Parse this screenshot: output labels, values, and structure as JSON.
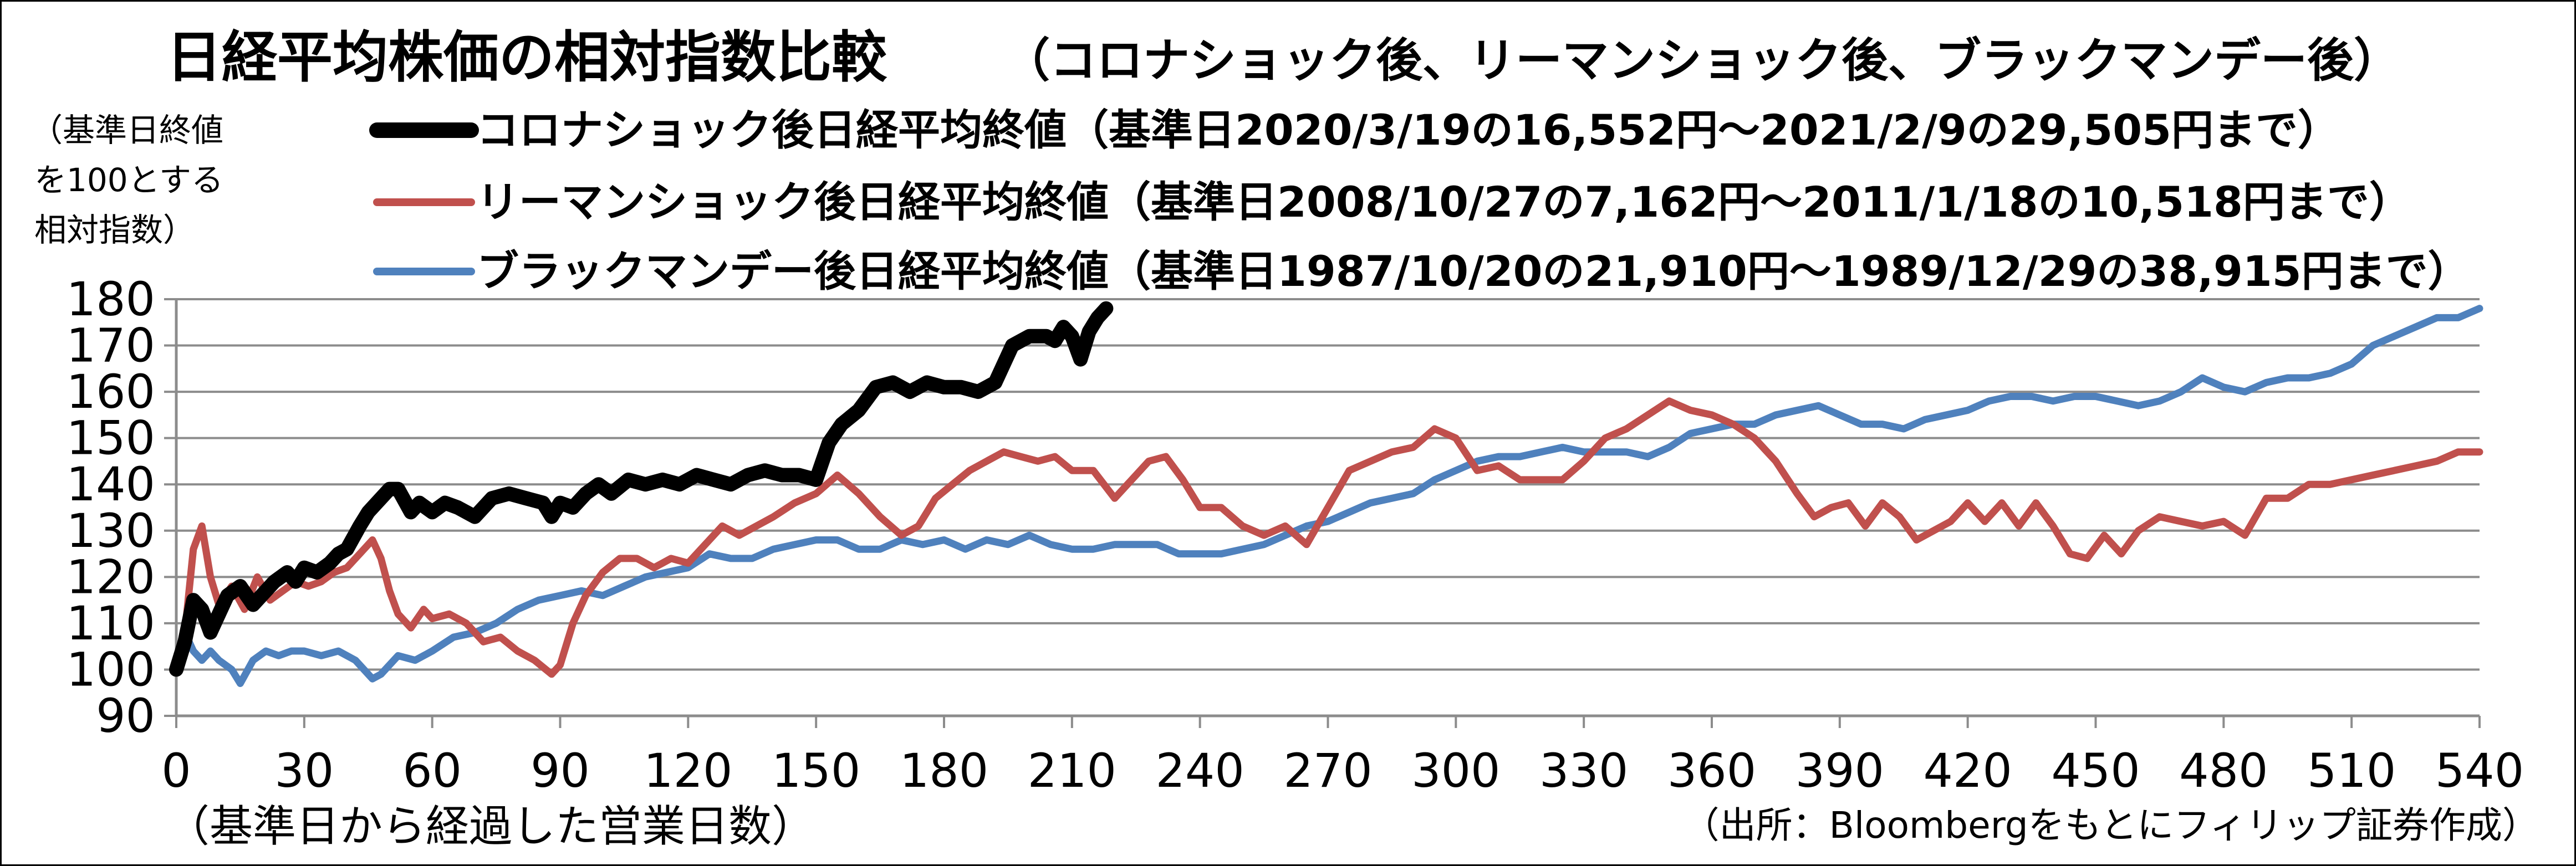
{
  "chart_data": {
    "type": "line",
    "title": "日経平均株価の相対指数比較",
    "subtitle": "（コロナショック後、リーマンショック後、ブラックマンデー後）",
    "ylabel_lines": [
      "（基準日終値",
      "を100とする",
      "相対指数）"
    ],
    "xlabel": "（基準日から経過した営業日数）",
    "source": "（出所：Bloombergをもとにフィリップ証券作成）",
    "xlim": [
      0,
      540
    ],
    "ylim": [
      90,
      180
    ],
    "xticks": [
      0,
      30,
      60,
      90,
      120,
      150,
      180,
      210,
      240,
      270,
      300,
      330,
      360,
      390,
      420,
      450,
      480,
      510,
      540
    ],
    "yticks": [
      90,
      100,
      110,
      120,
      130,
      140,
      150,
      160,
      170,
      180
    ],
    "grid": true,
    "legend_position": "top",
    "series": [
      {
        "name": "コロナショック後日経平均終値（基準日2020/3/19の16,552円～2021/2/9の29,505円まで）",
        "color": "#000000",
        "points": [
          [
            0,
            100
          ],
          [
            2,
            106
          ],
          [
            4,
            115
          ],
          [
            6,
            113
          ],
          [
            8,
            108
          ],
          [
            10,
            112
          ],
          [
            12,
            116
          ],
          [
            15,
            118
          ],
          [
            18,
            114
          ],
          [
            20,
            116
          ],
          [
            23,
            119
          ],
          [
            26,
            121
          ],
          [
            28,
            119
          ],
          [
            30,
            122
          ],
          [
            33,
            121
          ],
          [
            36,
            123
          ],
          [
            38,
            125
          ],
          [
            40,
            126
          ],
          [
            43,
            131
          ],
          [
            45,
            134
          ],
          [
            48,
            137
          ],
          [
            50,
            139
          ],
          [
            52,
            139
          ],
          [
            55,
            134
          ],
          [
            57,
            136
          ],
          [
            60,
            134
          ],
          [
            63,
            136
          ],
          [
            66,
            135
          ],
          [
            70,
            133
          ],
          [
            74,
            137
          ],
          [
            78,
            138
          ],
          [
            82,
            137
          ],
          [
            86,
            136
          ],
          [
            88,
            133
          ],
          [
            90,
            136
          ],
          [
            93,
            135
          ],
          [
            96,
            138
          ],
          [
            99,
            140
          ],
          [
            102,
            138
          ],
          [
            106,
            141
          ],
          [
            110,
            140
          ],
          [
            114,
            141
          ],
          [
            118,
            140
          ],
          [
            122,
            142
          ],
          [
            126,
            141
          ],
          [
            130,
            140
          ],
          [
            134,
            142
          ],
          [
            138,
            143
          ],
          [
            142,
            142
          ],
          [
            146,
            142
          ],
          [
            150,
            141
          ],
          [
            153,
            149
          ],
          [
            156,
            153
          ],
          [
            160,
            156
          ],
          [
            164,
            161
          ],
          [
            168,
            162
          ],
          [
            172,
            160
          ],
          [
            176,
            162
          ],
          [
            180,
            161
          ],
          [
            184,
            161
          ],
          [
            188,
            160
          ],
          [
            192,
            162
          ],
          [
            196,
            170
          ],
          [
            200,
            172
          ],
          [
            204,
            172
          ],
          [
            206,
            171
          ],
          [
            208,
            174
          ],
          [
            210,
            172
          ],
          [
            212,
            167
          ],
          [
            214,
            173
          ],
          [
            216,
            176
          ],
          [
            218,
            178
          ]
        ]
      },
      {
        "name": "リーマンショック後日経平均終値（基準日2008/10/27の7,162円～2011/1/18の10,518円まで）",
        "color": "#c0504d",
        "points": [
          [
            0,
            100
          ],
          [
            2,
            108
          ],
          [
            4,
            126
          ],
          [
            6,
            131
          ],
          [
            8,
            120
          ],
          [
            10,
            114
          ],
          [
            13,
            118
          ],
          [
            16,
            113
          ],
          [
            19,
            120
          ],
          [
            22,
            115
          ],
          [
            25,
            117
          ],
          [
            28,
            119
          ],
          [
            31,
            118
          ],
          [
            34,
            119
          ],
          [
            37,
            121
          ],
          [
            40,
            122
          ],
          [
            43,
            125
          ],
          [
            46,
            128
          ],
          [
            48,
            124
          ],
          [
            50,
            117
          ],
          [
            52,
            112
          ],
          [
            55,
            109
          ],
          [
            58,
            113
          ],
          [
            60,
            111
          ],
          [
            64,
            112
          ],
          [
            68,
            110
          ],
          [
            72,
            106
          ],
          [
            76,
            107
          ],
          [
            80,
            104
          ],
          [
            84,
            102
          ],
          [
            88,
            99
          ],
          [
            90,
            101
          ],
          [
            93,
            110
          ],
          [
            96,
            116
          ],
          [
            100,
            121
          ],
          [
            104,
            124
          ],
          [
            108,
            124
          ],
          [
            112,
            122
          ],
          [
            116,
            124
          ],
          [
            120,
            123
          ],
          [
            124,
            127
          ],
          [
            128,
            131
          ],
          [
            132,
            129
          ],
          [
            136,
            131
          ],
          [
            140,
            133
          ],
          [
            145,
            136
          ],
          [
            150,
            138
          ],
          [
            155,
            142
          ],
          [
            160,
            138
          ],
          [
            165,
            133
          ],
          [
            170,
            129
          ],
          [
            174,
            131
          ],
          [
            178,
            137
          ],
          [
            182,
            140
          ],
          [
            186,
            143
          ],
          [
            190,
            145
          ],
          [
            194,
            147
          ],
          [
            198,
            146
          ],
          [
            202,
            145
          ],
          [
            206,
            146
          ],
          [
            210,
            143
          ],
          [
            215,
            143
          ],
          [
            220,
            137
          ],
          [
            224,
            141
          ],
          [
            228,
            145
          ],
          [
            232,
            146
          ],
          [
            236,
            141
          ],
          [
            240,
            135
          ],
          [
            245,
            135
          ],
          [
            250,
            131
          ],
          [
            255,
            129
          ],
          [
            260,
            131
          ],
          [
            265,
            127
          ],
          [
            270,
            135
          ],
          [
            275,
            143
          ],
          [
            280,
            145
          ],
          [
            285,
            147
          ],
          [
            290,
            148
          ],
          [
            295,
            152
          ],
          [
            300,
            150
          ],
          [
            305,
            143
          ],
          [
            310,
            144
          ],
          [
            315,
            141
          ],
          [
            320,
            141
          ],
          [
            325,
            141
          ],
          [
            330,
            145
          ],
          [
            335,
            150
          ],
          [
            340,
            152
          ],
          [
            345,
            155
          ],
          [
            350,
            158
          ],
          [
            355,
            156
          ],
          [
            360,
            155
          ],
          [
            365,
            153
          ],
          [
            370,
            150
          ],
          [
            375,
            145
          ],
          [
            380,
            138
          ],
          [
            384,
            133
          ],
          [
            388,
            135
          ],
          [
            392,
            136
          ],
          [
            396,
            131
          ],
          [
            400,
            136
          ],
          [
            404,
            133
          ],
          [
            408,
            128
          ],
          [
            412,
            130
          ],
          [
            416,
            132
          ],
          [
            420,
            136
          ],
          [
            424,
            132
          ],
          [
            428,
            136
          ],
          [
            432,
            131
          ],
          [
            436,
            136
          ],
          [
            440,
            131
          ],
          [
            444,
            125
          ],
          [
            448,
            124
          ],
          [
            452,
            129
          ],
          [
            456,
            125
          ],
          [
            460,
            130
          ],
          [
            465,
            133
          ],
          [
            470,
            132
          ],
          [
            475,
            131
          ],
          [
            480,
            132
          ],
          [
            485,
            129
          ],
          [
            490,
            137
          ],
          [
            495,
            137
          ],
          [
            500,
            140
          ],
          [
            505,
            140
          ],
          [
            510,
            141
          ],
          [
            515,
            142
          ],
          [
            520,
            143
          ],
          [
            525,
            144
          ],
          [
            530,
            145
          ],
          [
            535,
            147
          ],
          [
            540,
            147
          ]
        ]
      },
      {
        "name": "ブラックマンデー後日経平均終値（基準日1987/10/20の21,910円～1989/12/29の38,915円まで）",
        "color": "#4f81bd",
        "points": [
          [
            0,
            100
          ],
          [
            2,
            108
          ],
          [
            4,
            104
          ],
          [
            6,
            102
          ],
          [
            8,
            104
          ],
          [
            10,
            102
          ],
          [
            13,
            100
          ],
          [
            15,
            97
          ],
          [
            18,
            102
          ],
          [
            21,
            104
          ],
          [
            24,
            103
          ],
          [
            27,
            104
          ],
          [
            30,
            104
          ],
          [
            34,
            103
          ],
          [
            38,
            104
          ],
          [
            42,
            102
          ],
          [
            46,
            98
          ],
          [
            48,
            99
          ],
          [
            52,
            103
          ],
          [
            56,
            102
          ],
          [
            60,
            104
          ],
          [
            65,
            107
          ],
          [
            70,
            108
          ],
          [
            75,
            110
          ],
          [
            80,
            113
          ],
          [
            85,
            115
          ],
          [
            90,
            116
          ],
          [
            95,
            117
          ],
          [
            100,
            116
          ],
          [
            105,
            118
          ],
          [
            110,
            120
          ],
          [
            115,
            121
          ],
          [
            120,
            122
          ],
          [
            125,
            125
          ],
          [
            130,
            124
          ],
          [
            135,
            124
          ],
          [
            140,
            126
          ],
          [
            145,
            127
          ],
          [
            150,
            128
          ],
          [
            155,
            128
          ],
          [
            160,
            126
          ],
          [
            165,
            126
          ],
          [
            170,
            128
          ],
          [
            175,
            127
          ],
          [
            180,
            128
          ],
          [
            185,
            126
          ],
          [
            190,
            128
          ],
          [
            195,
            127
          ],
          [
            200,
            129
          ],
          [
            205,
            127
          ],
          [
            210,
            126
          ],
          [
            215,
            126
          ],
          [
            220,
            127
          ],
          [
            225,
            127
          ],
          [
            230,
            127
          ],
          [
            235,
            125
          ],
          [
            240,
            125
          ],
          [
            245,
            125
          ],
          [
            250,
            126
          ],
          [
            255,
            127
          ],
          [
            260,
            129
          ],
          [
            265,
            131
          ],
          [
            270,
            132
          ],
          [
            275,
            134
          ],
          [
            280,
            136
          ],
          [
            285,
            137
          ],
          [
            290,
            138
          ],
          [
            295,
            141
          ],
          [
            300,
            143
          ],
          [
            305,
            145
          ],
          [
            310,
            146
          ],
          [
            315,
            146
          ],
          [
            320,
            147
          ],
          [
            325,
            148
          ],
          [
            330,
            147
          ],
          [
            335,
            147
          ],
          [
            340,
            147
          ],
          [
            345,
            146
          ],
          [
            350,
            148
          ],
          [
            355,
            151
          ],
          [
            360,
            152
          ],
          [
            365,
            153
          ],
          [
            370,
            153
          ],
          [
            375,
            155
          ],
          [
            380,
            156
          ],
          [
            385,
            157
          ],
          [
            390,
            155
          ],
          [
            395,
            153
          ],
          [
            400,
            153
          ],
          [
            405,
            152
          ],
          [
            410,
            154
          ],
          [
            415,
            155
          ],
          [
            420,
            156
          ],
          [
            425,
            158
          ],
          [
            430,
            159
          ],
          [
            435,
            159
          ],
          [
            440,
            158
          ],
          [
            445,
            159
          ],
          [
            450,
            159
          ],
          [
            455,
            158
          ],
          [
            460,
            157
          ],
          [
            465,
            158
          ],
          [
            470,
            160
          ],
          [
            475,
            163
          ],
          [
            480,
            161
          ],
          [
            485,
            160
          ],
          [
            490,
            162
          ],
          [
            495,
            163
          ],
          [
            500,
            163
          ],
          [
            505,
            164
          ],
          [
            510,
            166
          ],
          [
            515,
            170
          ],
          [
            520,
            172
          ],
          [
            525,
            174
          ],
          [
            530,
            176
          ],
          [
            535,
            176
          ],
          [
            540,
            178
          ]
        ]
      }
    ]
  }
}
